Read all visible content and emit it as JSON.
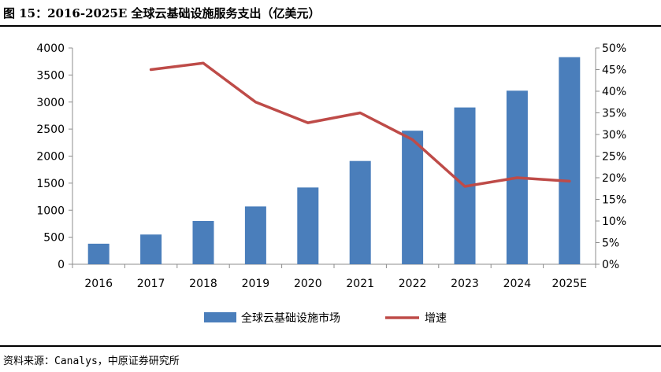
{
  "header": {
    "title": "图 15：2016-2025E 全球云基础设施服务支出（亿美元）"
  },
  "footer": {
    "source": "资料来源：Canalys，中原证券研究所"
  },
  "chart_data": {
    "type": "bar",
    "categories": [
      "2016",
      "2017",
      "2018",
      "2019",
      "2020",
      "2021",
      "2022",
      "2023",
      "2024",
      "2025E"
    ],
    "series": [
      {
        "name": "全球云基础设施市场",
        "type": "bar",
        "axis": "left",
        "values": [
          380,
          550,
          800,
          1070,
          1420,
          1910,
          2470,
          2900,
          3210,
          3830
        ]
      },
      {
        "name": "增速",
        "type": "line",
        "axis": "right",
        "values": [
          null,
          45.0,
          46.5,
          37.5,
          32.7,
          35.0,
          28.8,
          18.0,
          20.0,
          19.2
        ]
      }
    ],
    "y_left": {
      "min": 0,
      "max": 4000,
      "ticks": [
        "0",
        "500",
        "1000",
        "1500",
        "2000",
        "2500",
        "3000",
        "3500",
        "4000"
      ]
    },
    "y_right": {
      "min": 0,
      "max": 50,
      "unit": "%",
      "ticks": [
        "0%",
        "5%",
        "10%",
        "15%",
        "20%",
        "25%",
        "30%",
        "35%",
        "40%",
        "45%",
        "50%"
      ]
    },
    "colors": {
      "bar": "#4a7ebb",
      "line": "#be4b48"
    },
    "grid": false,
    "legend": "bottom"
  }
}
